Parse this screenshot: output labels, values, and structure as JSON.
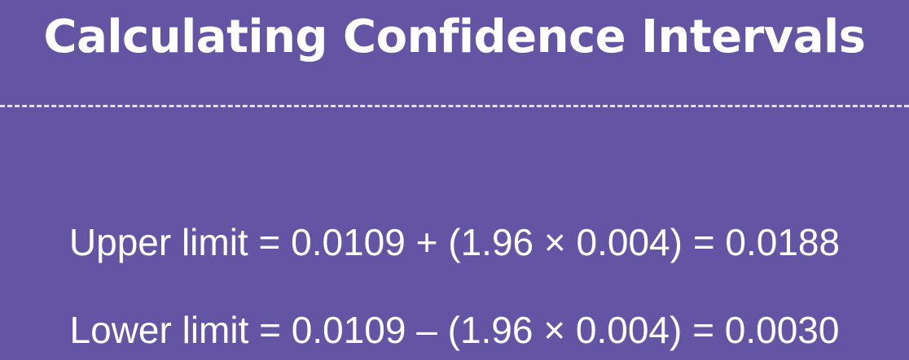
{
  "slide": {
    "title": "Calculating Confidence Intervals",
    "formulas": [
      {
        "text": "Upper limit = 0.0109 + (1.96 × 0.004) = 0.0188"
      },
      {
        "text": "Lower limit = 0.0109 – (1.96 × 0.004) = 0.0030"
      }
    ],
    "colors": {
      "background": "#6455a4",
      "text": "#ffffff",
      "divider": "#e6e2f2"
    }
  }
}
